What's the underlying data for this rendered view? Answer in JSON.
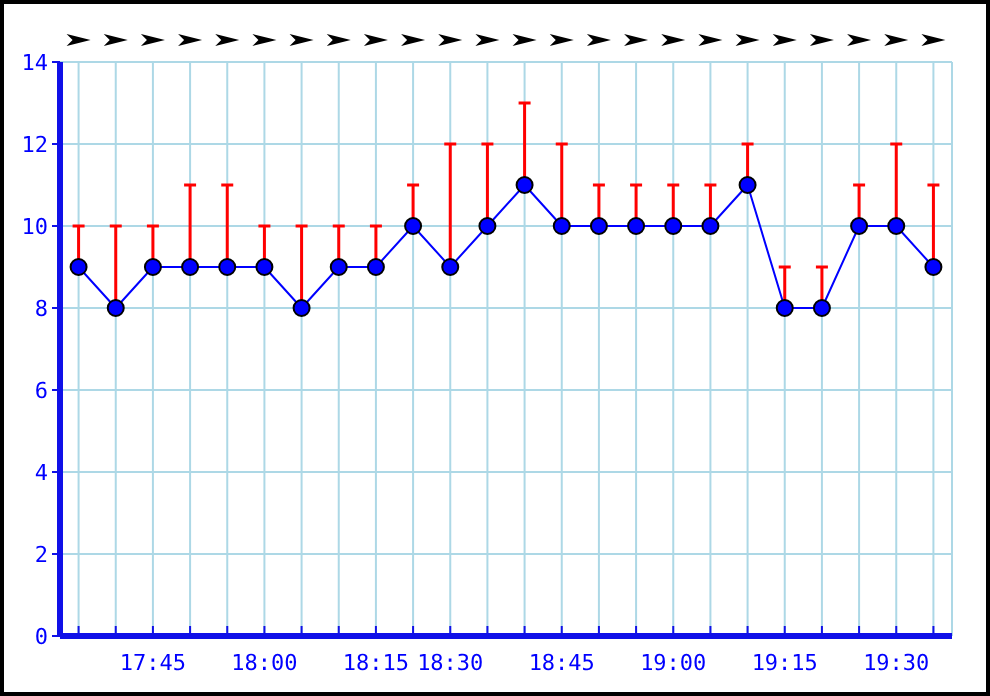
{
  "chart_data": {
    "type": "line",
    "categories": [
      null,
      null,
      "17:45",
      null,
      null,
      "18:00",
      null,
      null,
      "18:15",
      null,
      "18:30",
      null,
      null,
      "18:45",
      null,
      null,
      "19:00",
      null,
      null,
      "19:15",
      null,
      null,
      "19:30",
      null
    ],
    "series": [
      {
        "color": "#0000ff",
        "values": [
          9,
          8,
          9,
          9,
          9,
          9,
          8,
          9,
          9,
          10,
          9,
          10,
          11,
          10,
          10,
          10,
          10,
          10,
          11,
          8,
          8,
          10,
          10,
          9
        ],
        "errors": [
          [
            9,
            10
          ],
          [
            8,
            10
          ],
          [
            9,
            10
          ],
          [
            9,
            11
          ],
          [
            9,
            11
          ],
          [
            9,
            10
          ],
          [
            8,
            10
          ],
          [
            9,
            10
          ],
          [
            9,
            10
          ],
          [
            10,
            11
          ],
          [
            9,
            12
          ],
          [
            10,
            12
          ],
          [
            11,
            13
          ],
          [
            10,
            12
          ],
          [
            10,
            11
          ],
          [
            10,
            11
          ],
          [
            10,
            11
          ],
          [
            10,
            11
          ],
          [
            11,
            12
          ],
          [
            8,
            9
          ],
          [
            8,
            9
          ],
          [
            10,
            11
          ],
          [
            10,
            12
          ],
          [
            9,
            11
          ]
        ]
      }
    ],
    "ylim": [
      0,
      14
    ],
    "yticks": [
      0,
      2,
      4,
      6,
      8,
      10,
      12,
      14
    ],
    "grid": true,
    "marker": "circle",
    "line_style": "solid"
  }
}
